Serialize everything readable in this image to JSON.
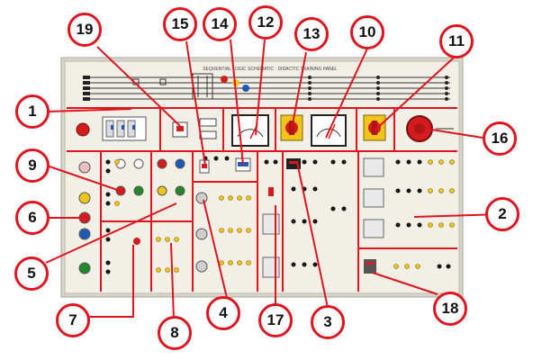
{
  "colors": {
    "panel": "#f1efe6",
    "frame": "#d8d5cb",
    "divider": "#e0141e",
    "callout_border": "#e0141e",
    "terminal_black": "#161616",
    "terminal_yellow": "#f2c418",
    "button_red": "#d31c1c",
    "button_green": "#1f8a2a",
    "button_blue": "#1d59b8",
    "button_yellow": "#f0c419"
  },
  "panel": {
    "top_strip_text": "SEQUENTIAL LOGIC SCHEMATIC · DIDACTIC TRAINING PANEL"
  },
  "callouts": [
    {
      "label": "1"
    },
    {
      "label": "2"
    },
    {
      "label": "3"
    },
    {
      "label": "4"
    },
    {
      "label": "5"
    },
    {
      "label": "6"
    },
    {
      "label": "7"
    },
    {
      "label": "8"
    },
    {
      "label": "9"
    },
    {
      "label": "10"
    },
    {
      "label": "11"
    },
    {
      "label": "12"
    },
    {
      "label": "13"
    },
    {
      "label": "14"
    },
    {
      "label": "15"
    },
    {
      "label": "16"
    },
    {
      "label": "17"
    },
    {
      "label": "18"
    },
    {
      "label": "19"
    }
  ],
  "icons": {
    "emergency_stop": "emergency-stop-icon",
    "rotary_switch": "rotary-switch-icon",
    "voltmeter": "analog-meter-icon",
    "contactor": "contactor-icon",
    "pilot_light": "pilot-light-icon",
    "push_button": "push-button-icon"
  }
}
